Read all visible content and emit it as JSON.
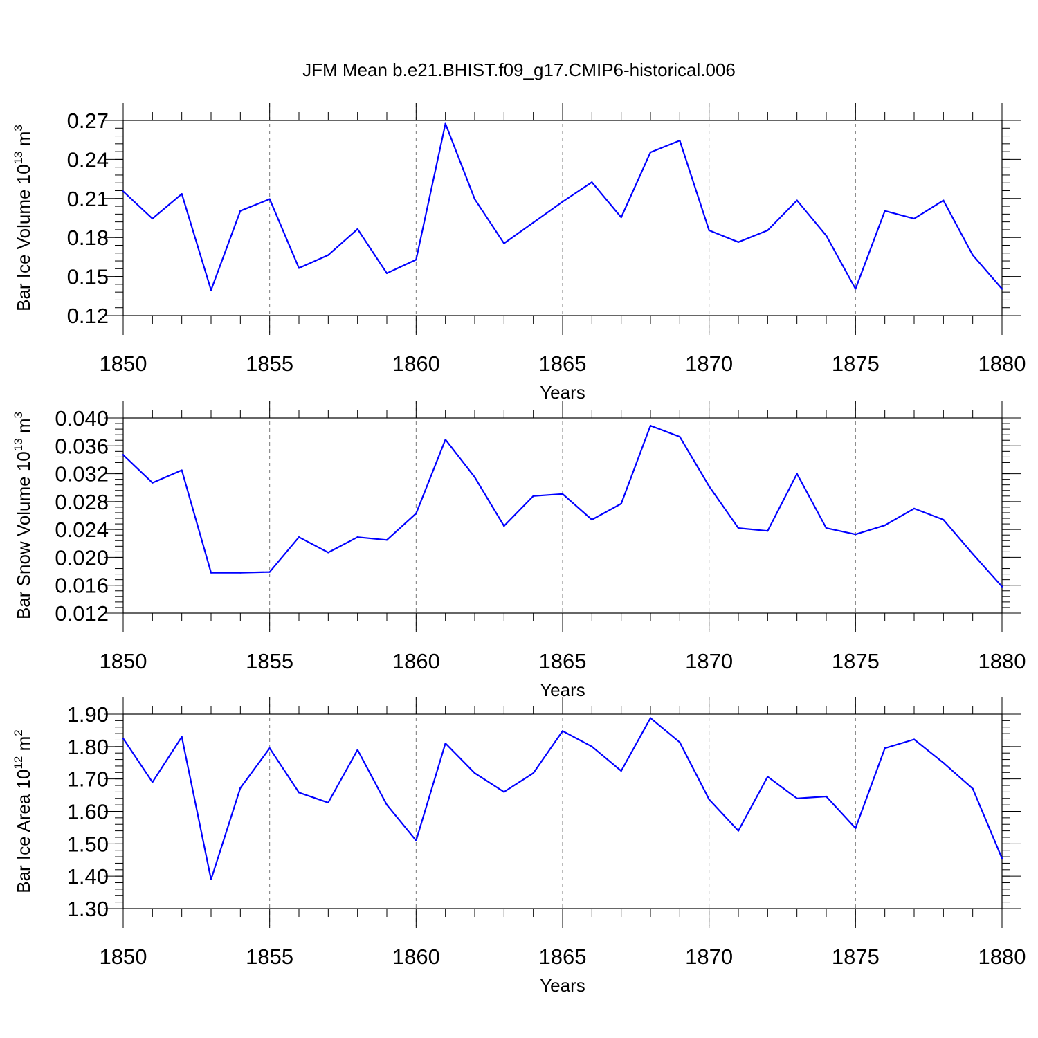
{
  "title": "JFM Mean b.e21.BHIST.f09_g17.CMIP6-historical.006",
  "colors": {
    "line": "#0000ff",
    "axes": "#000000",
    "grid": "#777777"
  },
  "chart_data": [
    {
      "type": "line",
      "xlabel": "Years",
      "ylabel": {
        "prefix": "Bar Ice Volume 10",
        "exp": "13",
        "unit": " m",
        "unit_exp": "3"
      },
      "xlim": [
        1850,
        1880
      ],
      "x_ticks": [
        1850,
        1855,
        1860,
        1865,
        1870,
        1875,
        1880
      ],
      "x_tick_labels": [
        "1850",
        "1855",
        "1860",
        "1865",
        "1870",
        "1875",
        "1880"
      ],
      "ylim": [
        0.12,
        0.27
      ],
      "y_ticks": [
        0.12,
        0.15,
        0.18,
        0.21,
        0.24,
        0.27
      ],
      "y_tick_labels": [
        "0.12",
        "0.15",
        "0.18",
        "0.21",
        "0.24",
        "0.27"
      ],
      "y_minor_step": 0.006,
      "x": [
        1850,
        1851,
        1852,
        1853,
        1854,
        1855,
        1856,
        1857,
        1858,
        1859,
        1860,
        1861,
        1862,
        1863,
        1864,
        1865,
        1866,
        1867,
        1868,
        1869,
        1870,
        1871,
        1872,
        1873,
        1874,
        1875,
        1876,
        1877,
        1878,
        1879,
        1880
      ],
      "series": [
        {
          "name": "Bar Ice Volume",
          "values": [
            0.2155,
            0.1945,
            0.2135,
            0.1395,
            0.2005,
            0.2095,
            0.1565,
            0.1665,
            0.1865,
            0.1525,
            0.163,
            0.2675,
            0.2095,
            0.1755,
            0.1915,
            0.2075,
            0.2225,
            0.1955,
            0.2455,
            0.2545,
            0.1855,
            0.1765,
            0.1855,
            0.2085,
            0.1815,
            0.1405,
            0.2005,
            0.1945,
            0.2085,
            0.1665,
            0.1405
          ]
        }
      ]
    },
    {
      "type": "line",
      "xlabel": "Years",
      "ylabel": {
        "prefix": "Bar Snow Volume 10",
        "exp": "13",
        "unit": " m",
        "unit_exp": "3"
      },
      "xlim": [
        1850,
        1880
      ],
      "x_ticks": [
        1850,
        1855,
        1860,
        1865,
        1870,
        1875,
        1880
      ],
      "x_tick_labels": [
        "1850",
        "1855",
        "1860",
        "1865",
        "1870",
        "1875",
        "1880"
      ],
      "ylim": [
        0.012,
        0.04
      ],
      "y_ticks": [
        0.012,
        0.016,
        0.02,
        0.024,
        0.028,
        0.032,
        0.036,
        0.04
      ],
      "y_tick_labels": [
        "0.012",
        "0.016",
        "0.020",
        "0.024",
        "0.028",
        "0.032",
        "0.036",
        "0.040"
      ],
      "y_minor_step": 0.0008,
      "x": [
        1850,
        1851,
        1852,
        1853,
        1854,
        1855,
        1856,
        1857,
        1858,
        1859,
        1860,
        1861,
        1862,
        1863,
        1864,
        1865,
        1866,
        1867,
        1868,
        1869,
        1870,
        1871,
        1872,
        1873,
        1874,
        1875,
        1876,
        1877,
        1878,
        1879,
        1880
      ],
      "series": [
        {
          "name": "Bar Snow Volume",
          "values": [
            0.0347,
            0.0307,
            0.0325,
            0.0178,
            0.0178,
            0.0179,
            0.0229,
            0.0207,
            0.0229,
            0.0225,
            0.0263,
            0.0369,
            0.0315,
            0.0245,
            0.0288,
            0.0291,
            0.0254,
            0.0277,
            0.0389,
            0.0373,
            0.0302,
            0.0242,
            0.0238,
            0.032,
            0.0242,
            0.0233,
            0.0246,
            0.027,
            0.0254,
            0.0205,
            0.0158
          ]
        }
      ]
    },
    {
      "type": "line",
      "xlabel": "Years",
      "ylabel": {
        "prefix": "Bar Ice Area 10",
        "exp": "12",
        "unit": " m",
        "unit_exp": "2"
      },
      "xlim": [
        1850,
        1880
      ],
      "x_ticks": [
        1850,
        1855,
        1860,
        1865,
        1870,
        1875,
        1880
      ],
      "x_tick_labels": [
        "1850",
        "1855",
        "1860",
        "1865",
        "1870",
        "1875",
        "1880"
      ],
      "ylim": [
        1.3,
        1.9
      ],
      "y_ticks": [
        1.3,
        1.4,
        1.5,
        1.6,
        1.7,
        1.8,
        1.9
      ],
      "y_tick_labels": [
        "1.30",
        "1.40",
        "1.50",
        "1.60",
        "1.70",
        "1.80",
        "1.90"
      ],
      "y_minor_step": 0.02,
      "x": [
        1850,
        1851,
        1852,
        1853,
        1854,
        1855,
        1856,
        1857,
        1858,
        1859,
        1860,
        1861,
        1862,
        1863,
        1864,
        1865,
        1866,
        1867,
        1868,
        1869,
        1870,
        1871,
        1872,
        1873,
        1874,
        1875,
        1876,
        1877,
        1878,
        1879,
        1880
      ],
      "series": [
        {
          "name": "Bar Ice Area",
          "values": [
            1.825,
            1.69,
            1.83,
            1.39,
            1.672,
            1.795,
            1.658,
            1.627,
            1.79,
            1.62,
            1.51,
            1.81,
            1.718,
            1.66,
            1.718,
            1.848,
            1.8,
            1.725,
            1.888,
            1.813,
            1.637,
            1.54,
            1.707,
            1.64,
            1.646,
            1.548,
            1.795,
            1.822,
            1.75,
            1.67,
            1.455
          ]
        }
      ]
    }
  ]
}
